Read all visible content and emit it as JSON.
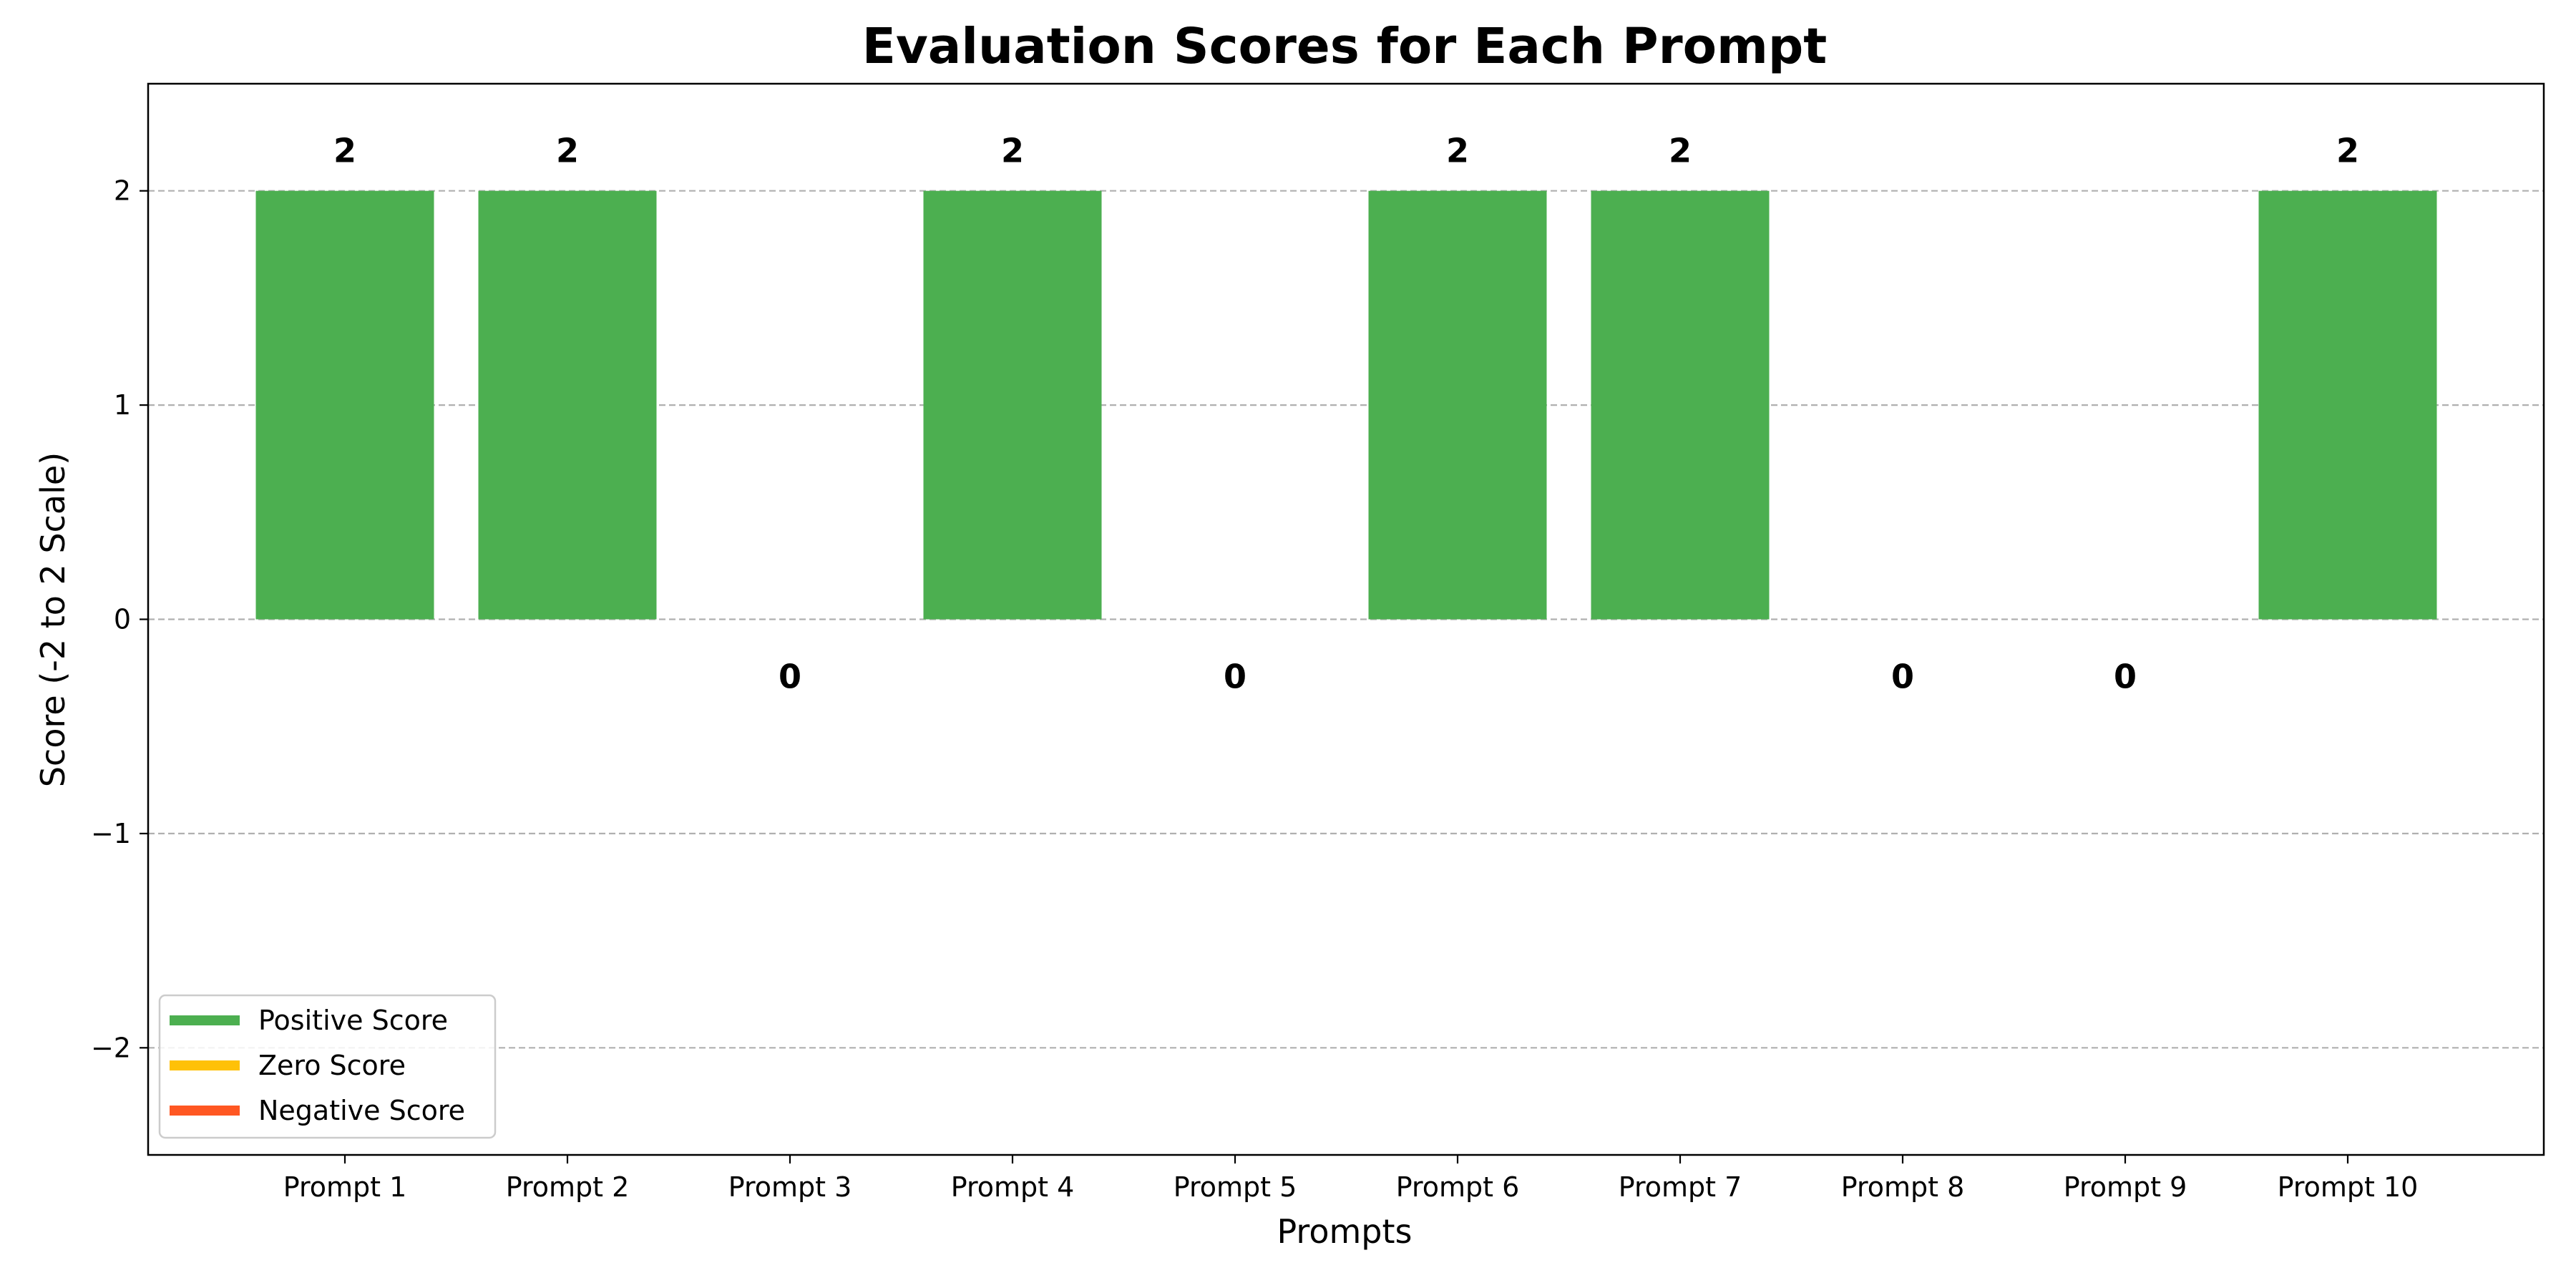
{
  "chart_data": {
    "type": "bar",
    "title": "Evaluation Scores for Each Prompt",
    "xlabel": "Prompts",
    "ylabel": "Score (-2 to 2 Scale)",
    "categories": [
      "Prompt 1",
      "Prompt 2",
      "Prompt 3",
      "Prompt 4",
      "Prompt 5",
      "Prompt 6",
      "Prompt 7",
      "Prompt 8",
      "Prompt 9",
      "Prompt 10"
    ],
    "values": [
      2,
      2,
      0,
      2,
      0,
      2,
      2,
      0,
      0,
      2
    ],
    "data_labels": [
      "2",
      "2",
      "0",
      "2",
      "0",
      "2",
      "2",
      "0",
      "0",
      "2"
    ],
    "ylim": [
      -2.5,
      2.5
    ],
    "yticks": [
      -2,
      -1,
      0,
      1,
      2
    ],
    "ytick_labels": [
      "−2",
      "−1",
      "0",
      "1",
      "2"
    ],
    "grid": {
      "axis": "y",
      "style": "dashed"
    },
    "legend": {
      "placement": "lower-left",
      "entries": [
        {
          "label": "Positive Score",
          "color": "#4caf50"
        },
        {
          "label": "Zero Score",
          "color": "#ffc107"
        },
        {
          "label": "Negative Score",
          "color": "#ff5722"
        }
      ]
    },
    "colors": {
      "positive": "#4caf50",
      "zero": "#ffc107",
      "negative": "#ff5722"
    }
  }
}
